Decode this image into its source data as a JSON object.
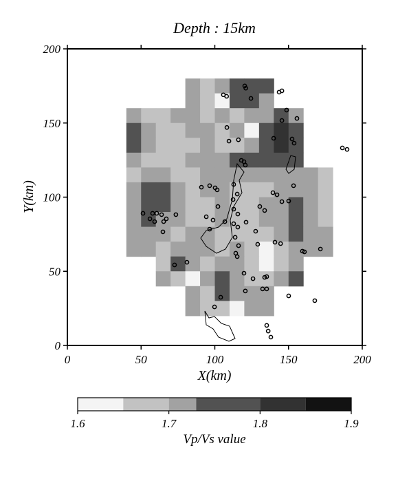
{
  "chart_data": {
    "type": "contour",
    "title": "Depth : 15km",
    "x_label": "X(km)",
    "y_label": "Y(km)",
    "xlim": [
      0,
      200
    ],
    "ylim": [
      0,
      200
    ],
    "xticks": [
      0,
      50,
      100,
      150,
      200
    ],
    "yticks": [
      0,
      50,
      100,
      150,
      200
    ],
    "levels": [
      1.6,
      1.65,
      1.7,
      1.73,
      1.8,
      1.85,
      1.9
    ],
    "level_colors": [
      "#f4f4f4",
      "#c2c2c2",
      "#a2a2a2",
      "#525252",
      "#323232",
      "#121212"
    ],
    "colorbar": {
      "label": "Vp/Vs value",
      "ticks": [
        1.6,
        1.7,
        1.8,
        1.9
      ]
    },
    "field": {
      "x": [
        45,
        55,
        65,
        75,
        85,
        95,
        105,
        115,
        125,
        135,
        145,
        155,
        165,
        175
      ],
      "y": [
        175,
        165,
        155,
        145,
        135,
        125,
        115,
        105,
        95,
        85,
        75,
        65,
        55,
        45,
        35,
        25
      ],
      "values": [
        [
          null,
          null,
          null,
          null,
          1.72,
          1.68,
          1.72,
          1.77,
          1.77,
          1.77,
          null,
          null,
          null,
          null
        ],
        [
          null,
          null,
          null,
          null,
          1.72,
          1.68,
          1.62,
          1.77,
          1.77,
          1.72,
          null,
          null,
          null,
          null
        ],
        [
          1.72,
          1.68,
          1.68,
          1.72,
          1.72,
          1.68,
          1.72,
          1.68,
          1.72,
          1.72,
          1.77,
          1.72,
          null,
          null
        ],
        [
          1.77,
          1.72,
          1.68,
          1.68,
          1.72,
          1.72,
          1.68,
          1.72,
          1.62,
          1.77,
          1.82,
          1.77,
          null,
          null
        ],
        [
          1.77,
          1.72,
          1.68,
          1.68,
          1.68,
          1.72,
          1.68,
          1.68,
          1.72,
          1.77,
          1.82,
          1.77,
          null,
          null
        ],
        [
          1.72,
          1.68,
          1.68,
          1.68,
          1.72,
          1.72,
          1.72,
          1.77,
          1.77,
          1.77,
          1.77,
          1.77,
          null,
          null
        ],
        [
          1.68,
          1.72,
          1.72,
          1.68,
          1.68,
          1.72,
          1.72,
          1.72,
          1.72,
          1.72,
          1.72,
          1.72,
          1.72,
          1.68
        ],
        [
          1.72,
          1.77,
          1.77,
          1.72,
          1.68,
          1.72,
          1.72,
          1.68,
          1.68,
          1.68,
          1.72,
          1.72,
          1.72,
          1.68
        ],
        [
          1.72,
          1.77,
          1.77,
          1.72,
          1.68,
          1.68,
          1.72,
          1.68,
          1.68,
          1.72,
          1.72,
          1.77,
          1.72,
          1.68
        ],
        [
          1.72,
          1.77,
          1.72,
          1.72,
          1.68,
          1.68,
          1.72,
          1.68,
          1.68,
          1.72,
          1.72,
          1.77,
          1.72,
          1.68
        ],
        [
          1.72,
          1.72,
          1.72,
          1.68,
          1.72,
          1.72,
          1.68,
          1.68,
          1.68,
          1.68,
          1.72,
          1.77,
          1.72,
          1.72
        ],
        [
          1.72,
          1.72,
          1.68,
          1.72,
          1.72,
          1.72,
          1.68,
          1.72,
          1.68,
          1.62,
          1.68,
          1.72,
          1.72,
          1.72
        ],
        [
          null,
          null,
          1.68,
          1.77,
          1.72,
          1.68,
          1.72,
          1.72,
          1.68,
          1.62,
          1.68,
          1.72,
          null,
          null
        ],
        [
          null,
          null,
          1.72,
          1.68,
          1.62,
          1.72,
          1.77,
          1.72,
          1.68,
          1.68,
          1.72,
          1.77,
          null,
          null
        ],
        [
          null,
          null,
          null,
          null,
          1.72,
          1.68,
          1.77,
          1.72,
          1.72,
          1.72,
          null,
          null,
          null,
          null
        ],
        [
          null,
          null,
          null,
          null,
          1.72,
          1.68,
          1.68,
          1.62,
          1.72,
          1.72,
          null,
          null,
          null,
          null
        ]
      ]
    },
    "points": {
      "color": "#000000",
      "x": [
        120.3,
        121,
        105.8,
        108,
        143.6,
        145.5,
        124.5,
        148.7,
        145.5,
        155.7,
        108.2,
        116,
        109.6,
        139.9,
        152.4,
        153.8,
        118,
        119.8,
        120.7,
        186.5,
        189.7,
        90.9,
        96.5,
        100.2,
        101.6,
        112.8,
        115.2,
        112.4,
        153.4,
        139.4,
        142.2,
        145.5,
        150.1,
        130.5,
        133.8,
        102.1,
        112.8,
        57.8,
        60.6,
        63.9,
        67.1,
        56,
        59.2,
        65.3,
        73.6,
        51.3,
        94.2,
        115.6,
        98.8,
        106.8,
        112.8,
        115.6,
        121.2,
        64.8,
        96.5,
        127.7,
        140.8,
        144.6,
        113.8,
        116.1,
        129.1,
        159.4,
        160.8,
        171.6,
        72.7,
        81.1,
        114.2,
        115.2,
        119.8,
        125.9,
        133.8,
        135.2,
        120.7,
        132.4,
        135.2,
        150.1,
        167.8,
        104,
        99.8,
        135.2,
        136.2,
        138
      ],
      "y": [
        175,
        173.5,
        169,
        168,
        170.8,
        171.7,
        166.6,
        158.7,
        151.7,
        153.1,
        147,
        138.7,
        137.8,
        139.7,
        139.2,
        136.4,
        124.8,
        123.9,
        121.6,
        133.2,
        132.2,
        106.7,
        107.7,
        106.3,
        104.9,
        108.6,
        102.1,
        98.4,
        107.7,
        103,
        101.6,
        97,
        97.4,
        93.7,
        91,
        93.7,
        91.9,
        89.1,
        89.1,
        88.2,
        85.4,
        85.4,
        83.5,
        83.5,
        88.2,
        89.1,
        86.8,
        88.6,
        84.5,
        83.5,
        82.1,
        79.8,
        83.1,
        76.6,
        78.4,
        77,
        69.6,
        68.7,
        72.9,
        67.3,
        68.2,
        63.6,
        63.1,
        65,
        54.3,
        56.1,
        62.2,
        59.9,
        48.7,
        45,
        45.9,
        46.4,
        36.7,
        38.1,
        38.1,
        33.4,
        30.2,
        32.5,
        26,
        13.5,
        9.7,
        5.6
      ]
    }
  }
}
